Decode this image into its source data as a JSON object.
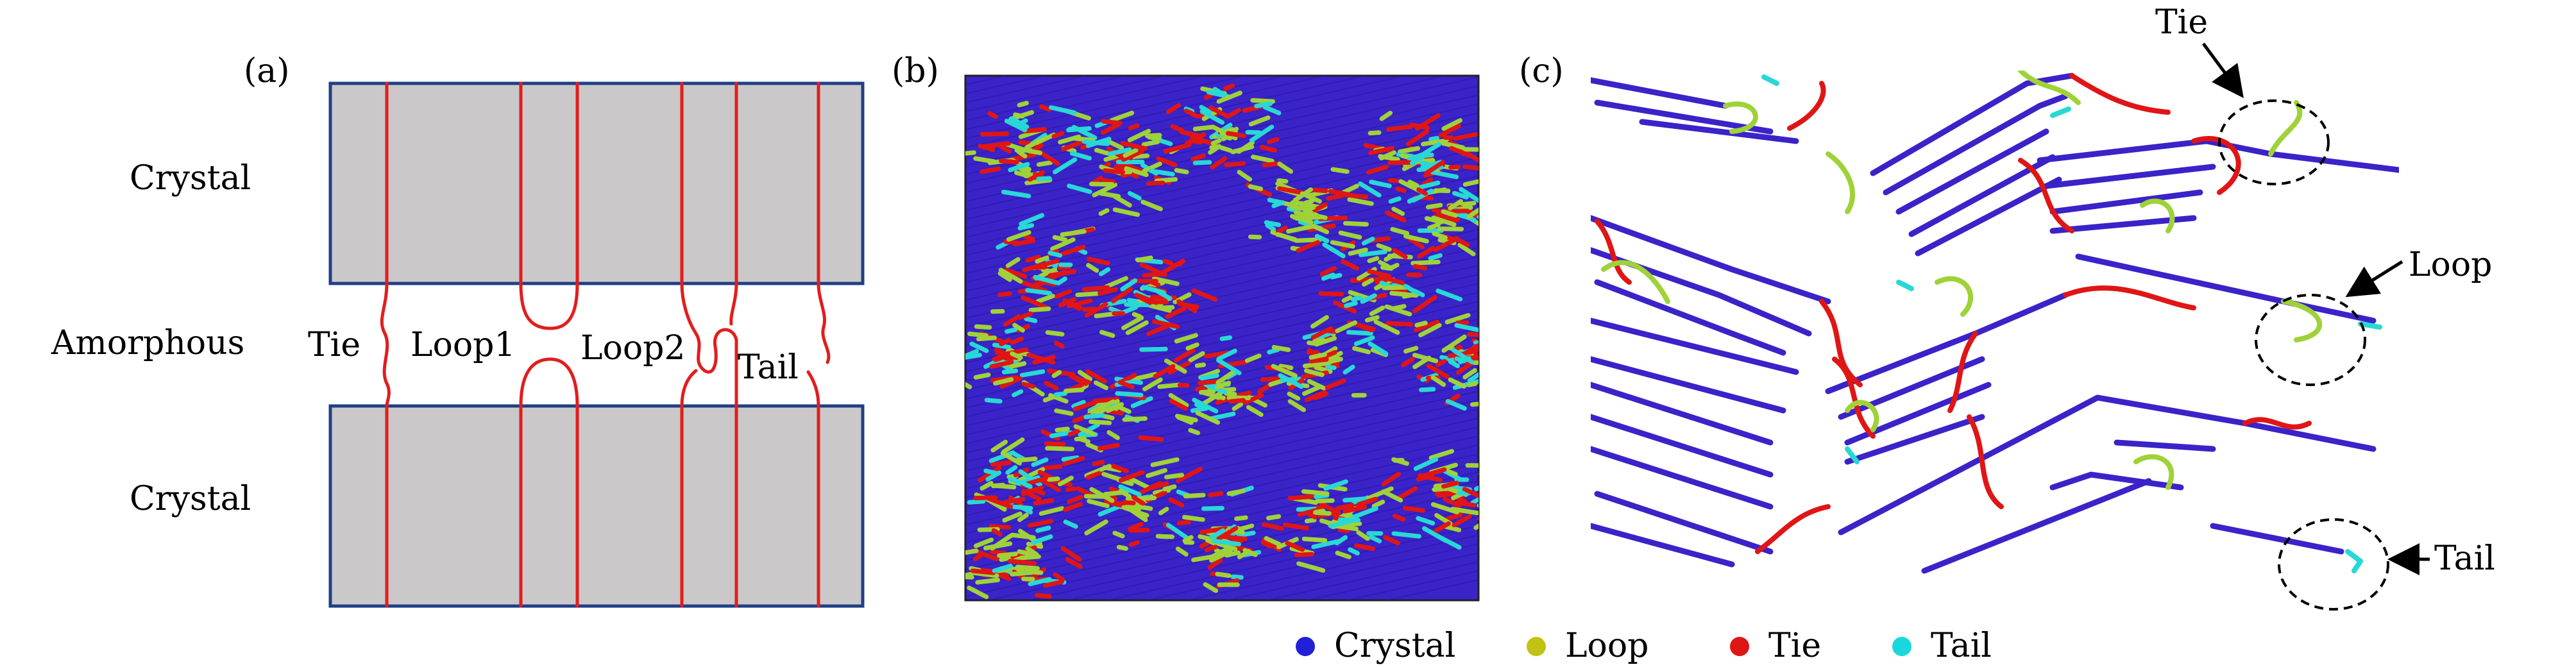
{
  "panel_a": {
    "label": "(a)",
    "crystal_top": "Crystal",
    "amorphous": "Amorphous",
    "crystal_bottom": "Crystal",
    "tie": "Tie",
    "loop1": "Loop1",
    "loop2": "Loop2",
    "tail": "Tail"
  },
  "panel_b": {
    "label": "(b)"
  },
  "panel_c": {
    "label": "(c)",
    "callout_tie": "Tie",
    "callout_loop": "Loop",
    "callout_tail": "Tail"
  },
  "legend": {
    "items": [
      {
        "label": "Crystal",
        "color": "#2020d8"
      },
      {
        "label": "Loop",
        "color": "#c2c214"
      },
      {
        "label": "Tie",
        "color": "#e01515"
      },
      {
        "label": "Tail",
        "color": "#19d8dc"
      }
    ]
  },
  "colors": {
    "crystal_box": "#cbc8c9",
    "box_border": "#1f3f86",
    "chain_red": "#e21d1d",
    "crystal_blue": "#3a23c8",
    "loop_green": "#9fd238",
    "tie_red": "#e01515",
    "tail_cyan": "#28d8d6"
  }
}
